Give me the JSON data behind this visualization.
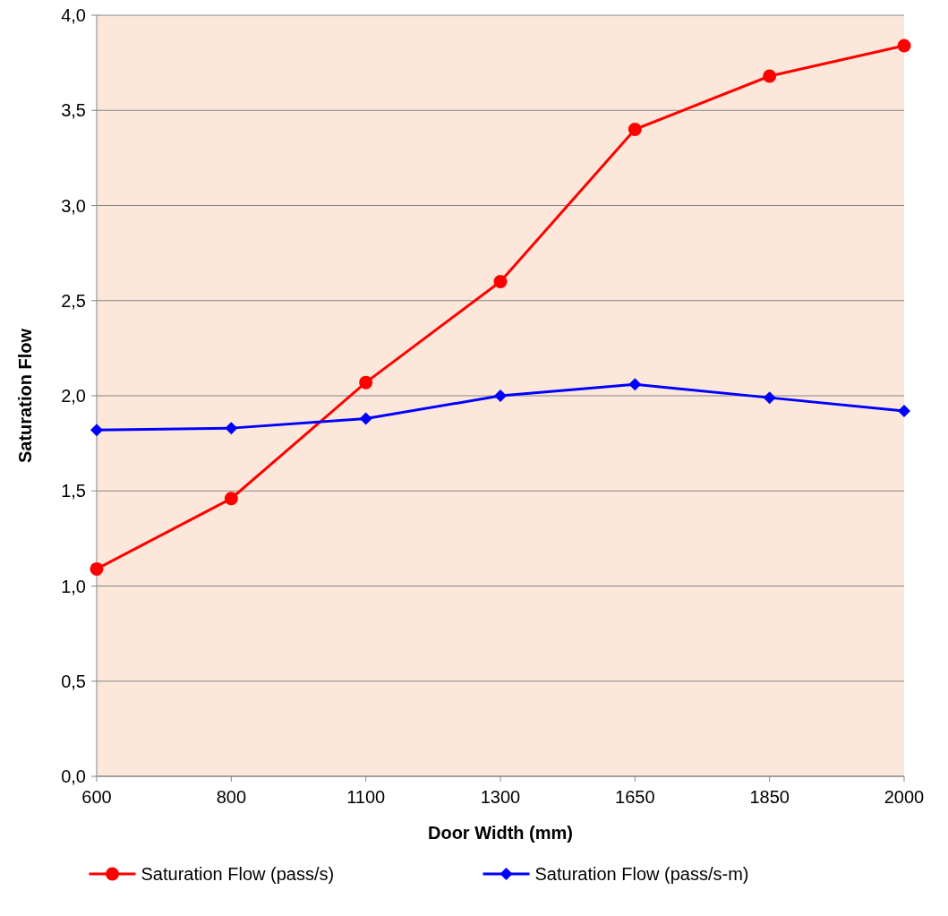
{
  "chart_data": {
    "type": "line",
    "xlabel": "Door Width (mm)",
    "ylabel": "Saturation Flow",
    "categories": [
      "600",
      "800",
      "1100",
      "1300",
      "1650",
      "1850",
      "2000"
    ],
    "series": [
      {
        "name": "Saturation Flow (pass/s)",
        "color": "#ff0000",
        "marker": "circle",
        "values": [
          1.09,
          1.46,
          2.07,
          2.6,
          3.4,
          3.68,
          3.84
        ]
      },
      {
        "name": "Saturation Flow (pass/s-m)",
        "color": "#0000ff",
        "marker": "diamond",
        "values": [
          1.82,
          1.83,
          1.88,
          2.0,
          2.06,
          1.99,
          1.92
        ]
      }
    ],
    "ylim": [
      0,
      4
    ],
    "yticks": [
      {
        "value": 0,
        "label": "0,0"
      },
      {
        "value": 0.5,
        "label": "0,5"
      },
      {
        "value": 1,
        "label": "1,0"
      },
      {
        "value": 1.5,
        "label": "1,5"
      },
      {
        "value": 2,
        "label": "2,0"
      },
      {
        "value": 2.5,
        "label": "2,5"
      },
      {
        "value": 3,
        "label": "3,0"
      },
      {
        "value": 3.5,
        "label": "3,5"
      },
      {
        "value": 4,
        "label": "4,0"
      }
    ],
    "grid": "y",
    "legend": "bottom"
  }
}
